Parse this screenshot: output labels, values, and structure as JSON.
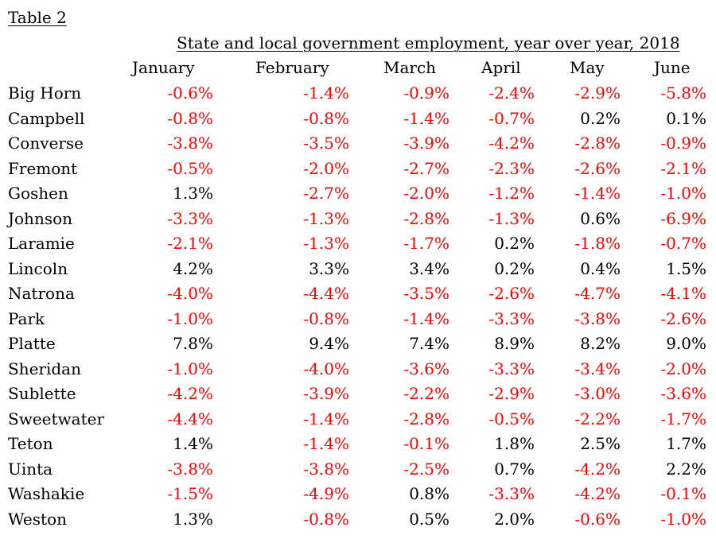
{
  "chart_data": {
    "type": "table",
    "table_label": "Table 2",
    "title": "State and local government employment, year over year, 2018",
    "columns": [
      "January",
      "February",
      "March",
      "April",
      "May",
      "June"
    ],
    "rows": [
      {
        "county": "Big Horn",
        "values": [
          "-0.6%",
          "-1.4%",
          "-0.9%",
          "-2.4%",
          "-2.9%",
          "-5.8%"
        ]
      },
      {
        "county": "Campbell",
        "values": [
          "-0.8%",
          "-0.8%",
          "-1.4%",
          "-0.7%",
          "0.2%",
          "0.1%"
        ]
      },
      {
        "county": "Converse",
        "values": [
          "-3.8%",
          "-3.5%",
          "-3.9%",
          "-4.2%",
          "-2.8%",
          "-0.9%"
        ]
      },
      {
        "county": "Fremont",
        "values": [
          "-0.5%",
          "-2.0%",
          "-2.7%",
          "-2.3%",
          "-2.6%",
          "-2.1%"
        ]
      },
      {
        "county": "Goshen",
        "values": [
          "1.3%",
          "-2.7%",
          "-2.0%",
          "-1.2%",
          "-1.4%",
          "-1.0%"
        ]
      },
      {
        "county": "Johnson",
        "values": [
          "-3.3%",
          "-1.3%",
          "-2.8%",
          "-1.3%",
          "0.6%",
          "-6.9%"
        ]
      },
      {
        "county": "Laramie",
        "values": [
          "-2.1%",
          "-1.3%",
          "-1.7%",
          "0.2%",
          "-1.8%",
          "-0.7%"
        ]
      },
      {
        "county": "Lincoln",
        "values": [
          "4.2%",
          "3.3%",
          "3.4%",
          "0.2%",
          "0.4%",
          "1.5%"
        ]
      },
      {
        "county": "Natrona",
        "values": [
          "-4.0%",
          "-4.4%",
          "-3.5%",
          "-2.6%",
          "-4.7%",
          "-4.1%"
        ]
      },
      {
        "county": "Park",
        "values": [
          "-1.0%",
          "-0.8%",
          "-1.4%",
          "-3.3%",
          "-3.8%",
          "-2.6%"
        ]
      },
      {
        "county": "Platte",
        "values": [
          "7.8%",
          "9.4%",
          "7.4%",
          "8.9%",
          "8.2%",
          "9.0%"
        ]
      },
      {
        "county": "Sheridan",
        "values": [
          "-1.0%",
          "-4.0%",
          "-3.6%",
          "-3.3%",
          "-3.4%",
          "-2.0%"
        ]
      },
      {
        "county": "Sublette",
        "values": [
          "-4.2%",
          "-3.9%",
          "-2.2%",
          "-2.9%",
          "-3.0%",
          "-3.6%"
        ]
      },
      {
        "county": "Sweetwater",
        "values": [
          "-4.4%",
          "-1.4%",
          "-2.8%",
          "-0.5%",
          "-2.2%",
          "-1.7%"
        ]
      },
      {
        "county": "Teton",
        "values": [
          "1.4%",
          "-1.4%",
          "-0.1%",
          "1.8%",
          "2.5%",
          "1.7%"
        ]
      },
      {
        "county": "Uinta",
        "values": [
          "-3.8%",
          "-3.8%",
          "-2.5%",
          "0.7%",
          "-4.2%",
          "2.2%"
        ]
      },
      {
        "county": "Washakie",
        "values": [
          "-1.5%",
          "-4.9%",
          "0.8%",
          "-3.3%",
          "-4.2%",
          "-0.1%"
        ]
      },
      {
        "county": "Weston",
        "values": [
          "1.3%",
          "-0.8%",
          "0.5%",
          "2.0%",
          "-0.6%",
          "-1.0%"
        ]
      }
    ],
    "colors": {
      "negative": "#ff0000",
      "positive": "#000000"
    }
  }
}
